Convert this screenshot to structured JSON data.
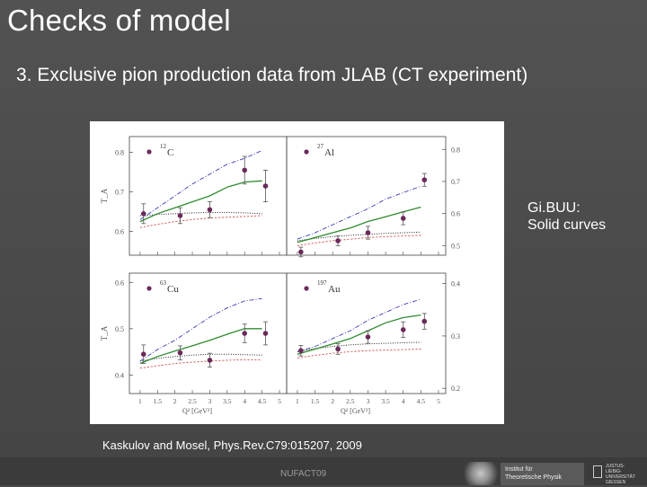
{
  "slide": {
    "title": "Checks of model",
    "subtitle": "3. Exclusive pion production data from JLAB (CT experiment)",
    "note_line1": "Gi.BUU:",
    "note_line2": "Solid curves",
    "reference": "Kaskulov and Mosel, Phys.Rev.C79:015207, 2009",
    "footer": "NUFACT09",
    "logo_text_1": "Institut für",
    "logo_text_2": "Theoretische Physik",
    "logo_text_3": "JUSTUS-LIEBIG-",
    "logo_text_4": "UNIVERSITÄT",
    "logo_text_5": "GIESSEN"
  },
  "chart_data": [
    {
      "type": "line",
      "panel": "top-left",
      "label_mass": "12",
      "label_elem": "C",
      "ylabel": "T_A",
      "ylim": [
        0.54,
        0.84
      ],
      "yticks": [
        0.6,
        0.7,
        0.8
      ],
      "ytick_labels": [
        "0.6",
        "0.7",
        "0.8"
      ],
      "ytick_side": "left",
      "xlim": [
        0.9,
        5.0
      ],
      "points": {
        "x": [
          1.1,
          2.15,
          3.0,
          4.0,
          4.6
        ],
        "y": [
          0.645,
          0.64,
          0.655,
          0.755,
          0.715
        ],
        "err": [
          0.025,
          0.02,
          0.02,
          0.035,
          0.04
        ]
      },
      "curves": {
        "x": [
          1.0,
          1.5,
          2.0,
          2.5,
          3.0,
          3.5,
          4.0,
          4.5
        ],
        "solid": [
          0.625,
          0.645,
          0.66,
          0.675,
          0.69,
          0.712,
          0.725,
          0.728
        ],
        "dashdot": [
          0.63,
          0.66,
          0.69,
          0.72,
          0.745,
          0.77,
          0.785,
          0.805
        ],
        "dotted": [
          0.64,
          0.643,
          0.645,
          0.647,
          0.648,
          0.648,
          0.647,
          0.645
        ],
        "dashed": [
          0.61,
          0.618,
          0.625,
          0.63,
          0.634,
          0.636,
          0.638,
          0.64
        ]
      }
    },
    {
      "type": "line",
      "panel": "top-right",
      "label_mass": "27",
      "label_elem": "Al",
      "ylabel": "",
      "ylim": [
        0.47,
        0.84
      ],
      "yticks": [
        0.5,
        0.6,
        0.7,
        0.8
      ],
      "ytick_labels": [
        "0.5",
        "0.6",
        "0.7",
        "0.8"
      ],
      "ytick_side": "right",
      "xlim": [
        0.9,
        5.0
      ],
      "points": {
        "x": [
          1.1,
          2.15,
          3.0,
          4.0,
          4.6
        ],
        "y": [
          0.48,
          0.515,
          0.54,
          0.585,
          0.705
        ],
        "err": [
          0.015,
          0.015,
          0.02,
          0.02,
          0.02
        ]
      },
      "curves": {
        "x": [
          1.0,
          1.5,
          2.0,
          2.5,
          3.0,
          3.5,
          4.0,
          4.5
        ],
        "solid": [
          0.51,
          0.525,
          0.54,
          0.555,
          0.575,
          0.59,
          0.605,
          0.62
        ],
        "dashdot": [
          0.52,
          0.54,
          0.565,
          0.59,
          0.615,
          0.645,
          0.665,
          0.685
        ],
        "dotted": [
          0.515,
          0.522,
          0.528,
          0.532,
          0.535,
          0.538,
          0.54,
          0.542
        ],
        "dashed": [
          0.5,
          0.508,
          0.515,
          0.52,
          0.525,
          0.528,
          0.53,
          0.532
        ]
      }
    },
    {
      "type": "line",
      "panel": "bottom-left",
      "label_mass": "63",
      "label_elem": "Cu",
      "ylabel": "T_A",
      "ylim": [
        0.36,
        0.62
      ],
      "yticks": [
        0.4,
        0.5,
        0.6
      ],
      "ytick_labels": [
        "0.4",
        "0.5",
        "0.6"
      ],
      "ytick_side": "left",
      "xlim": [
        0.9,
        5.0
      ],
      "points": {
        "x": [
          1.1,
          2.15,
          3.0,
          4.0,
          4.6
        ],
        "y": [
          0.445,
          0.448,
          0.432,
          0.49,
          0.49
        ],
        "err": [
          0.02,
          0.015,
          0.015,
          0.02,
          0.025
        ]
      },
      "curves": {
        "x": [
          1.0,
          1.5,
          2.0,
          2.5,
          3.0,
          3.5,
          4.0,
          4.5
        ],
        "solid": [
          0.425,
          0.44,
          0.452,
          0.463,
          0.475,
          0.488,
          0.5,
          0.5
        ],
        "dashdot": [
          0.43,
          0.455,
          0.475,
          0.5,
          0.525,
          0.545,
          0.56,
          0.565
        ],
        "dotted": [
          0.43,
          0.436,
          0.44,
          0.443,
          0.445,
          0.445,
          0.444,
          0.443
        ],
        "dashed": [
          0.415,
          0.42,
          0.425,
          0.428,
          0.43,
          0.432,
          0.433,
          0.433
        ]
      }
    },
    {
      "type": "line",
      "panel": "bottom-right",
      "label_mass": "197",
      "label_elem": "Au",
      "ylabel": "",
      "ylim": [
        0.19,
        0.42
      ],
      "yticks": [
        0.2,
        0.3,
        0.4
      ],
      "ytick_labels": [
        "0.2",
        "0.3",
        "0.4"
      ],
      "ytick_side": "right",
      "xlim": [
        0.9,
        5.0
      ],
      "points": {
        "x": [
          1.1,
          2.15,
          3.0,
          4.0,
          4.6
        ],
        "y": [
          0.272,
          0.275,
          0.298,
          0.312,
          0.328
        ],
        "err": [
          0.01,
          0.01,
          0.012,
          0.015,
          0.015
        ]
      },
      "curves": {
        "x": [
          1.0,
          1.5,
          2.0,
          2.5,
          3.0,
          3.5,
          4.0,
          4.5
        ],
        "solid": [
          0.265,
          0.275,
          0.285,
          0.295,
          0.31,
          0.325,
          0.335,
          0.34
        ],
        "dashdot": [
          0.27,
          0.28,
          0.295,
          0.31,
          0.33,
          0.345,
          0.36,
          0.37
        ],
        "dotted": [
          0.27,
          0.276,
          0.28,
          0.283,
          0.285,
          0.286,
          0.287,
          0.288
        ],
        "dashed": [
          0.258,
          0.263,
          0.267,
          0.27,
          0.272,
          0.273,
          0.274,
          0.275
        ]
      }
    }
  ],
  "x_axis": {
    "ticks": [
      1,
      1.5,
      2,
      2.5,
      3,
      3.5,
      4,
      4.5,
      5
    ],
    "tick_labels": [
      "1",
      "1.5",
      "2",
      "2.5",
      "3",
      "3.5",
      "4",
      "4.5",
      "5"
    ],
    "label": "Q² [GeV²]"
  },
  "colors": {
    "solid": "#2e8b2e",
    "dashdot": "#3a3ab8",
    "dotted": "#222222",
    "dashed": "#d04040",
    "points": "#6a2a5a",
    "errorbars": "#555555"
  }
}
